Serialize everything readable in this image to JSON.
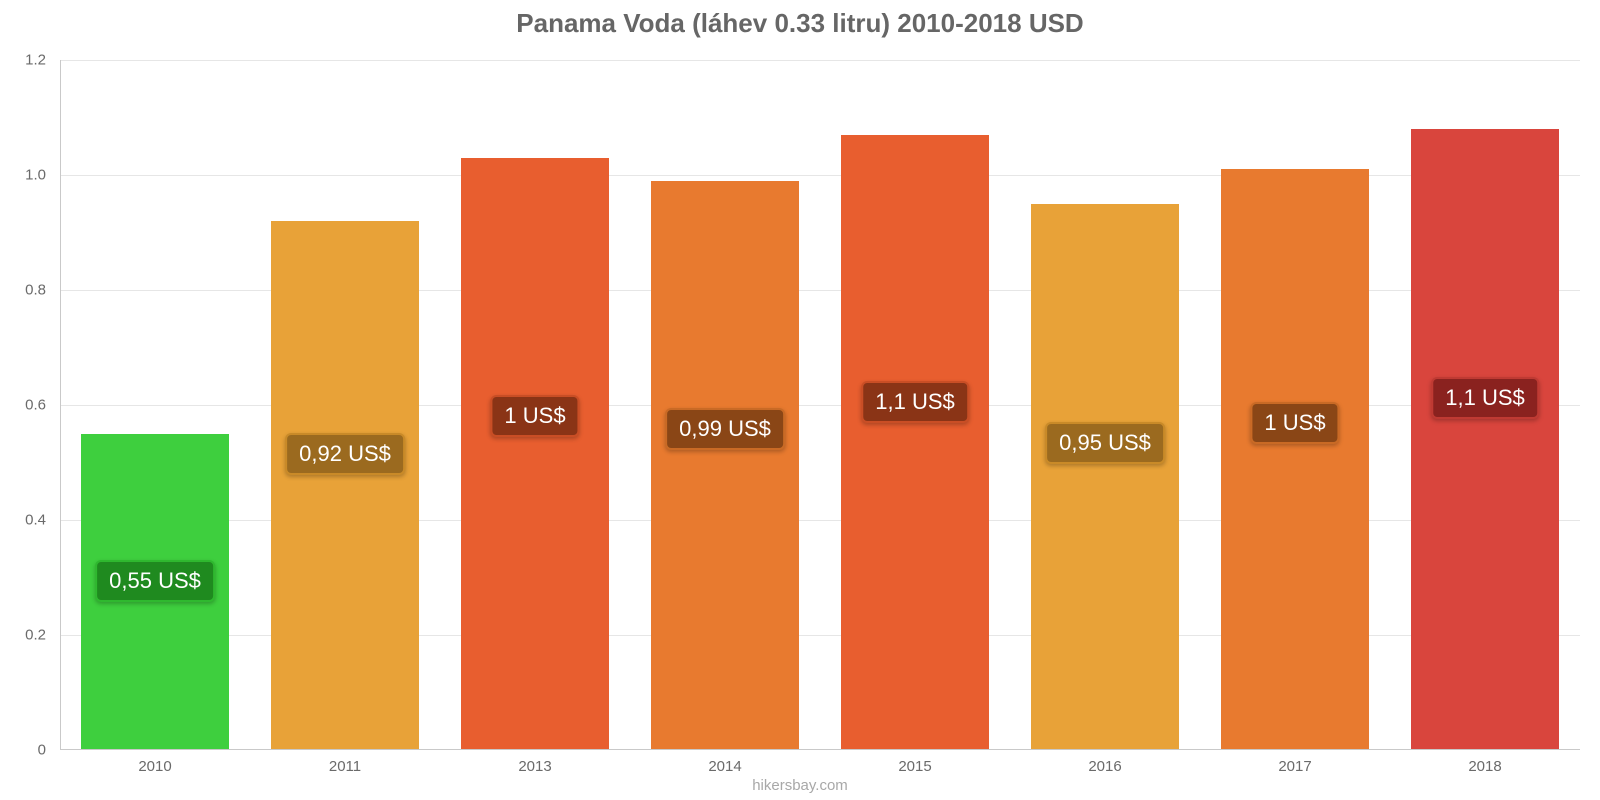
{
  "chart": {
    "type": "bar",
    "title": "Panama Voda (láhev 0.33 litru) 2010-2018 USD",
    "title_fontsize": 26,
    "title_color": "#666666",
    "footer": "hikersbay.com",
    "footer_fontsize": 15,
    "footer_color": "#a8a8a8",
    "background_color": "#ffffff",
    "axis_color": "#c9c9c9",
    "grid_color": "#e6e6e6",
    "tick_label_color": "#6a6a6a",
    "tick_label_fontsize": 15,
    "ylim": [
      0,
      1.2
    ],
    "ytick_step": 0.2,
    "yticks": [
      "0",
      "0.2",
      "0.4",
      "0.6",
      "0.8",
      "1.0",
      "1.2"
    ],
    "categories": [
      "2010",
      "2011",
      "2013",
      "2014",
      "2015",
      "2016",
      "2017",
      "2018"
    ],
    "values": [
      0.55,
      0.92,
      1.03,
      0.99,
      1.07,
      0.95,
      1.01,
      1.08
    ],
    "value_labels": [
      "0,55 US$",
      "0,92 US$",
      "1 US$",
      "0,99 US$",
      "1,1 US$",
      "0,95 US$",
      "1 US$",
      "1,1 US$"
    ],
    "bar_colors": [
      "#3ecf3e",
      "#e8a238",
      "#e85e2f",
      "#e87a2f",
      "#e85e2f",
      "#e8a238",
      "#e87a2f",
      "#d9453d"
    ],
    "badge_bg_colors": [
      "#1f8a1f",
      "#9b6a1f",
      "#8a3416",
      "#8a4616",
      "#8a3416",
      "#9b6a1f",
      "#8a4616",
      "#8a221f"
    ],
    "badge_border_colors": [
      "#2fb82f",
      "#c98a28",
      "#c94e25",
      "#c96a25",
      "#c94e25",
      "#c98a28",
      "#c96a25",
      "#bf3a33"
    ],
    "badge_fontsize": 22,
    "bar_width_ratio": 0.78
  }
}
